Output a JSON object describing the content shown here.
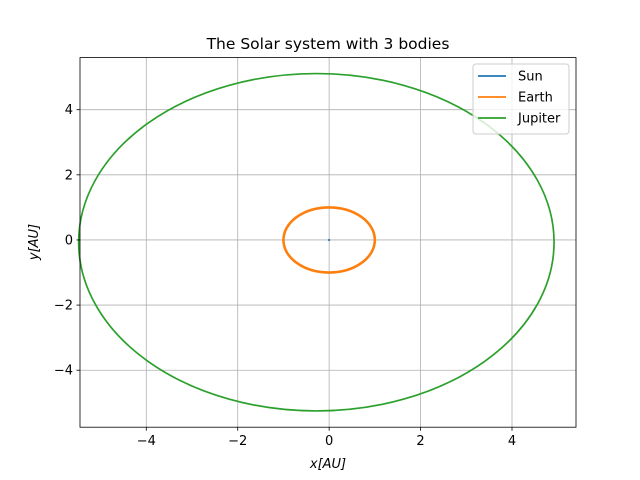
{
  "chart_data": {
    "type": "line",
    "title": "The Solar system with 3 bodies",
    "xlabel": "x[AU]",
    "ylabel": "y[AU]",
    "xlim": [
      -5.45,
      5.4
    ],
    "ylim": [
      -5.75,
      5.6
    ],
    "xticks": [
      -4,
      -2,
      0,
      2,
      4
    ],
    "yticks": [
      -4,
      -2,
      0,
      2,
      4
    ],
    "xtick_labels": [
      "−4",
      "−2",
      "0",
      "2",
      "4"
    ],
    "ytick_labels": [
      "−4",
      "−2",
      "0",
      "2",
      "4"
    ],
    "grid": true,
    "legend_position": "top-right",
    "series": [
      {
        "name": "Sun",
        "color": "#1f77b4",
        "orbit": {
          "cx": 0.0,
          "cy": 0.0,
          "rx": 0.01,
          "ry": 0.01
        }
      },
      {
        "name": "Earth",
        "color": "#ff7f0e",
        "orbit": {
          "cx": 0.0,
          "cy": 0.0,
          "rx": 1.0,
          "ry": 1.0
        }
      },
      {
        "name": "Jupiter",
        "color": "#2ca02c",
        "orbit": {
          "cx": -0.28,
          "cy": -0.07,
          "rx": 5.2,
          "ry": 5.18
        }
      }
    ]
  }
}
